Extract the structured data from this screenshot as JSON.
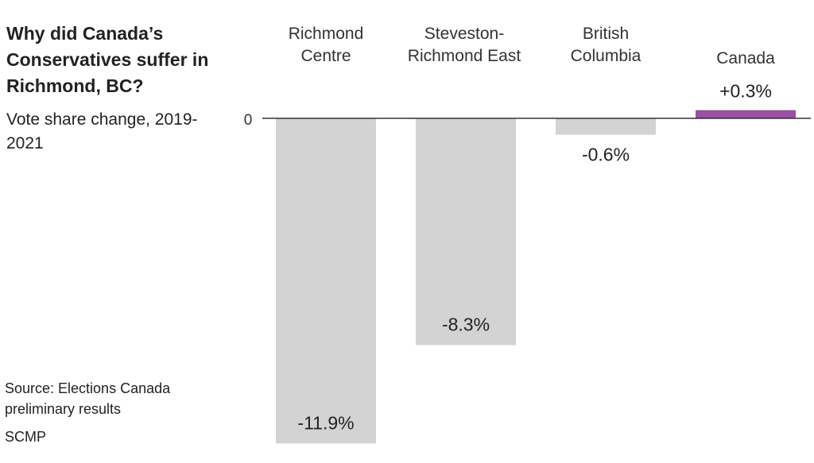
{
  "title": "Why did Canada’s Conservatives suffer in Richmond, BC?",
  "subtitle": "Vote share change, 2019-2021",
  "source": "Source: Elections Canada preliminary results",
  "brand": "SCMP",
  "chart_data": {
    "type": "bar",
    "title": "Why did Canada’s Conservatives suffer in Richmond, BC?",
    "ylabel": "Vote share change, 2019-2021",
    "categories": [
      [
        "Richmond",
        "Centre"
      ],
      [
        "Steveston-",
        "Richmond East"
      ],
      [
        "British",
        "Columbia"
      ],
      [
        "Canada"
      ]
    ],
    "values": [
      -11.9,
      -8.3,
      -0.6,
      0.3
    ],
    "labels": [
      "-11.9%",
      "-8.3%",
      "-0.6%",
      "+0.3%"
    ],
    "colors": [
      "#d3d3d3",
      "#d3d3d3",
      "#d3d3d3",
      "#9b4fa5"
    ],
    "zero_tick": "0",
    "grid": false
  }
}
